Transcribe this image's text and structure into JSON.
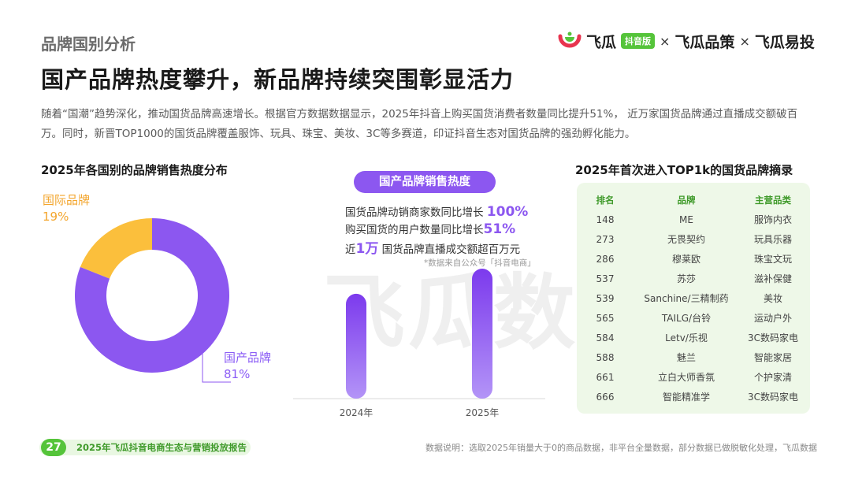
{
  "header": {
    "section_label": "品牌国别分析",
    "headline": "国产品牌热度攀升，新品牌持续突围彰显活力",
    "intro": "随着“国潮”趋势深化，推动国货品牌高速增长。根据官方数据数据显示，2025年抖音上购买国货消费者数量同比提升51%， 近万家国货品牌通过直播成交额破百万。同时，新晋TOP1000的国货品牌覆盖服饰、玩具、珠宝、美妆、3C等多赛道，印证抖音生态对国货品牌的强劲孵化能力。"
  },
  "logo": {
    "brand1": "飞瓜",
    "badge": "抖音版",
    "x": "×",
    "brand2": "飞瓜品策",
    "brand3": "飞瓜易投",
    "colors": {
      "red": "#e8344e",
      "green": "#55c43a"
    }
  },
  "watermark": "飞瓜数据",
  "pie": {
    "title": "2025年各国别的品牌销售热度分布",
    "international_label": "国际品牌",
    "international_value": "19%",
    "domestic_label": "国产品牌",
    "domestic_value": "81%"
  },
  "middle": {
    "pill": "国产品牌销售热度",
    "stat1_pre": "国货品牌动销商家数同比增长 ",
    "stat1_num": "100%",
    "stat2_pre": "购买国货的用户数量同比增长",
    "stat2_num": "51%",
    "stat3_pre": "近",
    "stat3_num": "1万",
    "stat3_post": " 国货品牌直播成交额超百万元",
    "source_note": "*数据来自公众号「抖音电商」"
  },
  "chart_data": [
    {
      "type": "pie",
      "title": "2025年各国别的品牌销售热度分布",
      "labels": [
        "国产品牌",
        "国际品牌"
      ],
      "values": [
        81,
        19
      ],
      "unit": "%",
      "colors": [
        "#8c57f0",
        "#fbbf3c"
      ]
    },
    {
      "type": "bar",
      "categories": [
        "2024年",
        "2025年"
      ],
      "values": [
        1,
        1.24
      ],
      "color": "#8c57f0"
    }
  ],
  "table": {
    "title": "2025年首次进入TOP1k的国货品牌摘录",
    "headers": [
      "排名",
      "品牌",
      "主营品类"
    ],
    "rows": [
      [
        "148",
        "ME",
        "服饰内衣"
      ],
      [
        "273",
        "无畏契约",
        "玩具乐器"
      ],
      [
        "286",
        "穆莱欧",
        "珠宝文玩"
      ],
      [
        "537",
        "苏莎",
        "滋补保健"
      ],
      [
        "539",
        "Sanchine/三精制药",
        "美妆"
      ],
      [
        "565",
        "TAILG/台铃",
        "运动户外"
      ],
      [
        "584",
        "Letv/乐视",
        "3C数码家电"
      ],
      [
        "588",
        "魅兰",
        "智能家居"
      ],
      [
        "661",
        "立白大师香氛",
        "个护家清"
      ],
      [
        "666",
        "智能精准学",
        "3C数码家电"
      ]
    ]
  },
  "footer": {
    "page": "27",
    "report": "2025年飞瓜抖音电商生态与营销投放报告",
    "note": "数据说明：选取2025年销量大于0的商品数据，非平台全量数据，部分数据已做脱敏化处理，飞瓜数据"
  }
}
